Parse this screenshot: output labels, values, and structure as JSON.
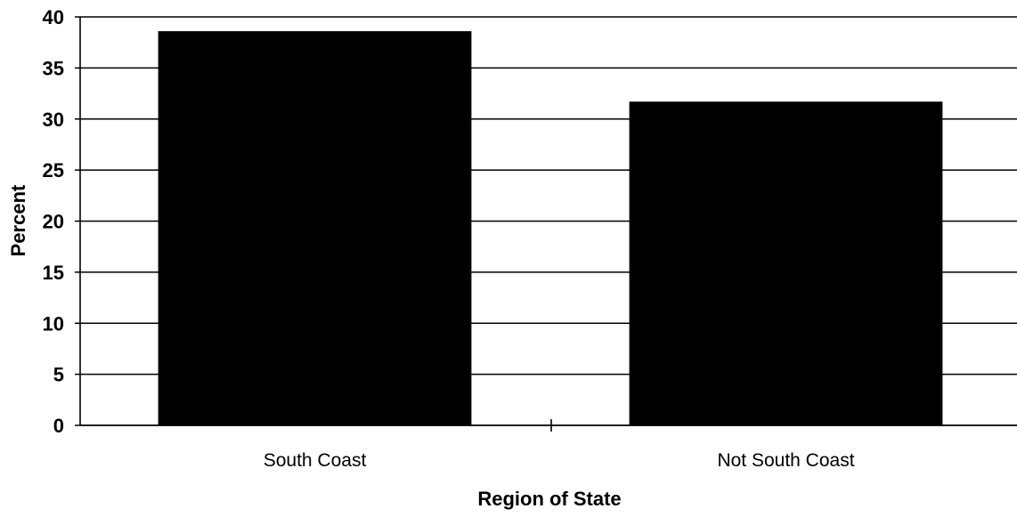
{
  "chart_data": {
    "type": "bar",
    "categories": [
      "South Coast",
      "Not South Coast"
    ],
    "values": [
      38.6,
      31.7
    ],
    "title": "",
    "xlabel": "Region of State",
    "ylabel": "Percent",
    "ylim": [
      0,
      40
    ],
    "yticks": [
      "0",
      "5",
      "10",
      "15",
      "20",
      "25",
      "30",
      "35",
      "40"
    ],
    "grid": true,
    "legend": "none",
    "bar_color": "#000000"
  }
}
